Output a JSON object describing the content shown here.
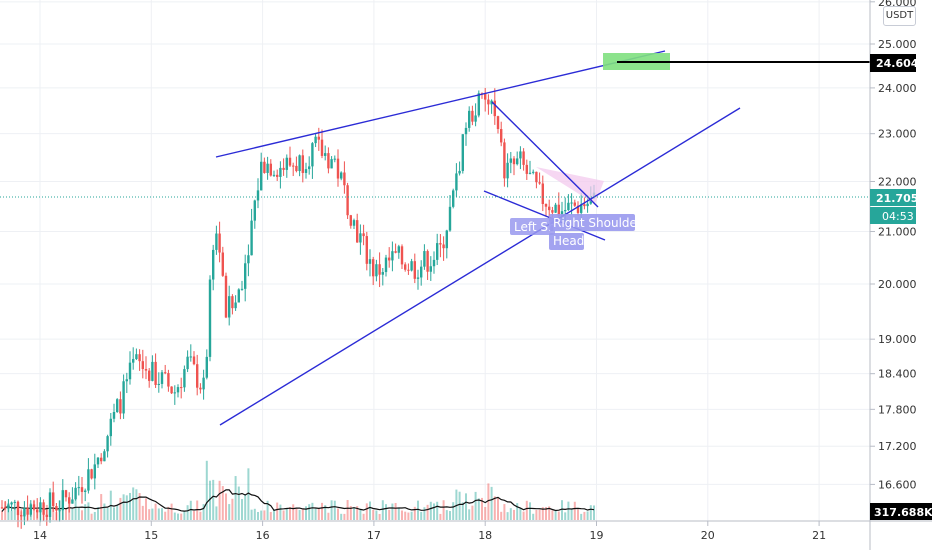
{
  "quote_unit": "USDT",
  "chart_data": {
    "type": "candlestick",
    "y_scale": "log",
    "price_range": [
      16.15,
      26.1
    ],
    "y_ticks": [
      "26.000",
      "25.000",
      "24.000",
      "23.000",
      "22.000",
      "21.000",
      "20.000",
      "19.000",
      "18.400",
      "17.800",
      "17.200",
      "16.600"
    ],
    "x_ticks": [
      "14",
      "15",
      "16",
      "17",
      "18",
      "19",
      "20",
      "21"
    ],
    "last_price_label": "21.705",
    "countdown_label": "04:53",
    "target_price_label": "24.604",
    "volume_label": "317.688K",
    "colors": {
      "up": "#26a69a",
      "down": "#ef5350",
      "trendline": "#2b2bd6",
      "target_zone": "#7fe07f",
      "target_line": "#000000",
      "label_bg": "#9999ee",
      "triangle_fill": "#f3c9ee",
      "last_price_bg": "#26a69a"
    },
    "annotations": [
      "Left Sh",
      "Right Shoulder",
      "Head"
    ]
  }
}
